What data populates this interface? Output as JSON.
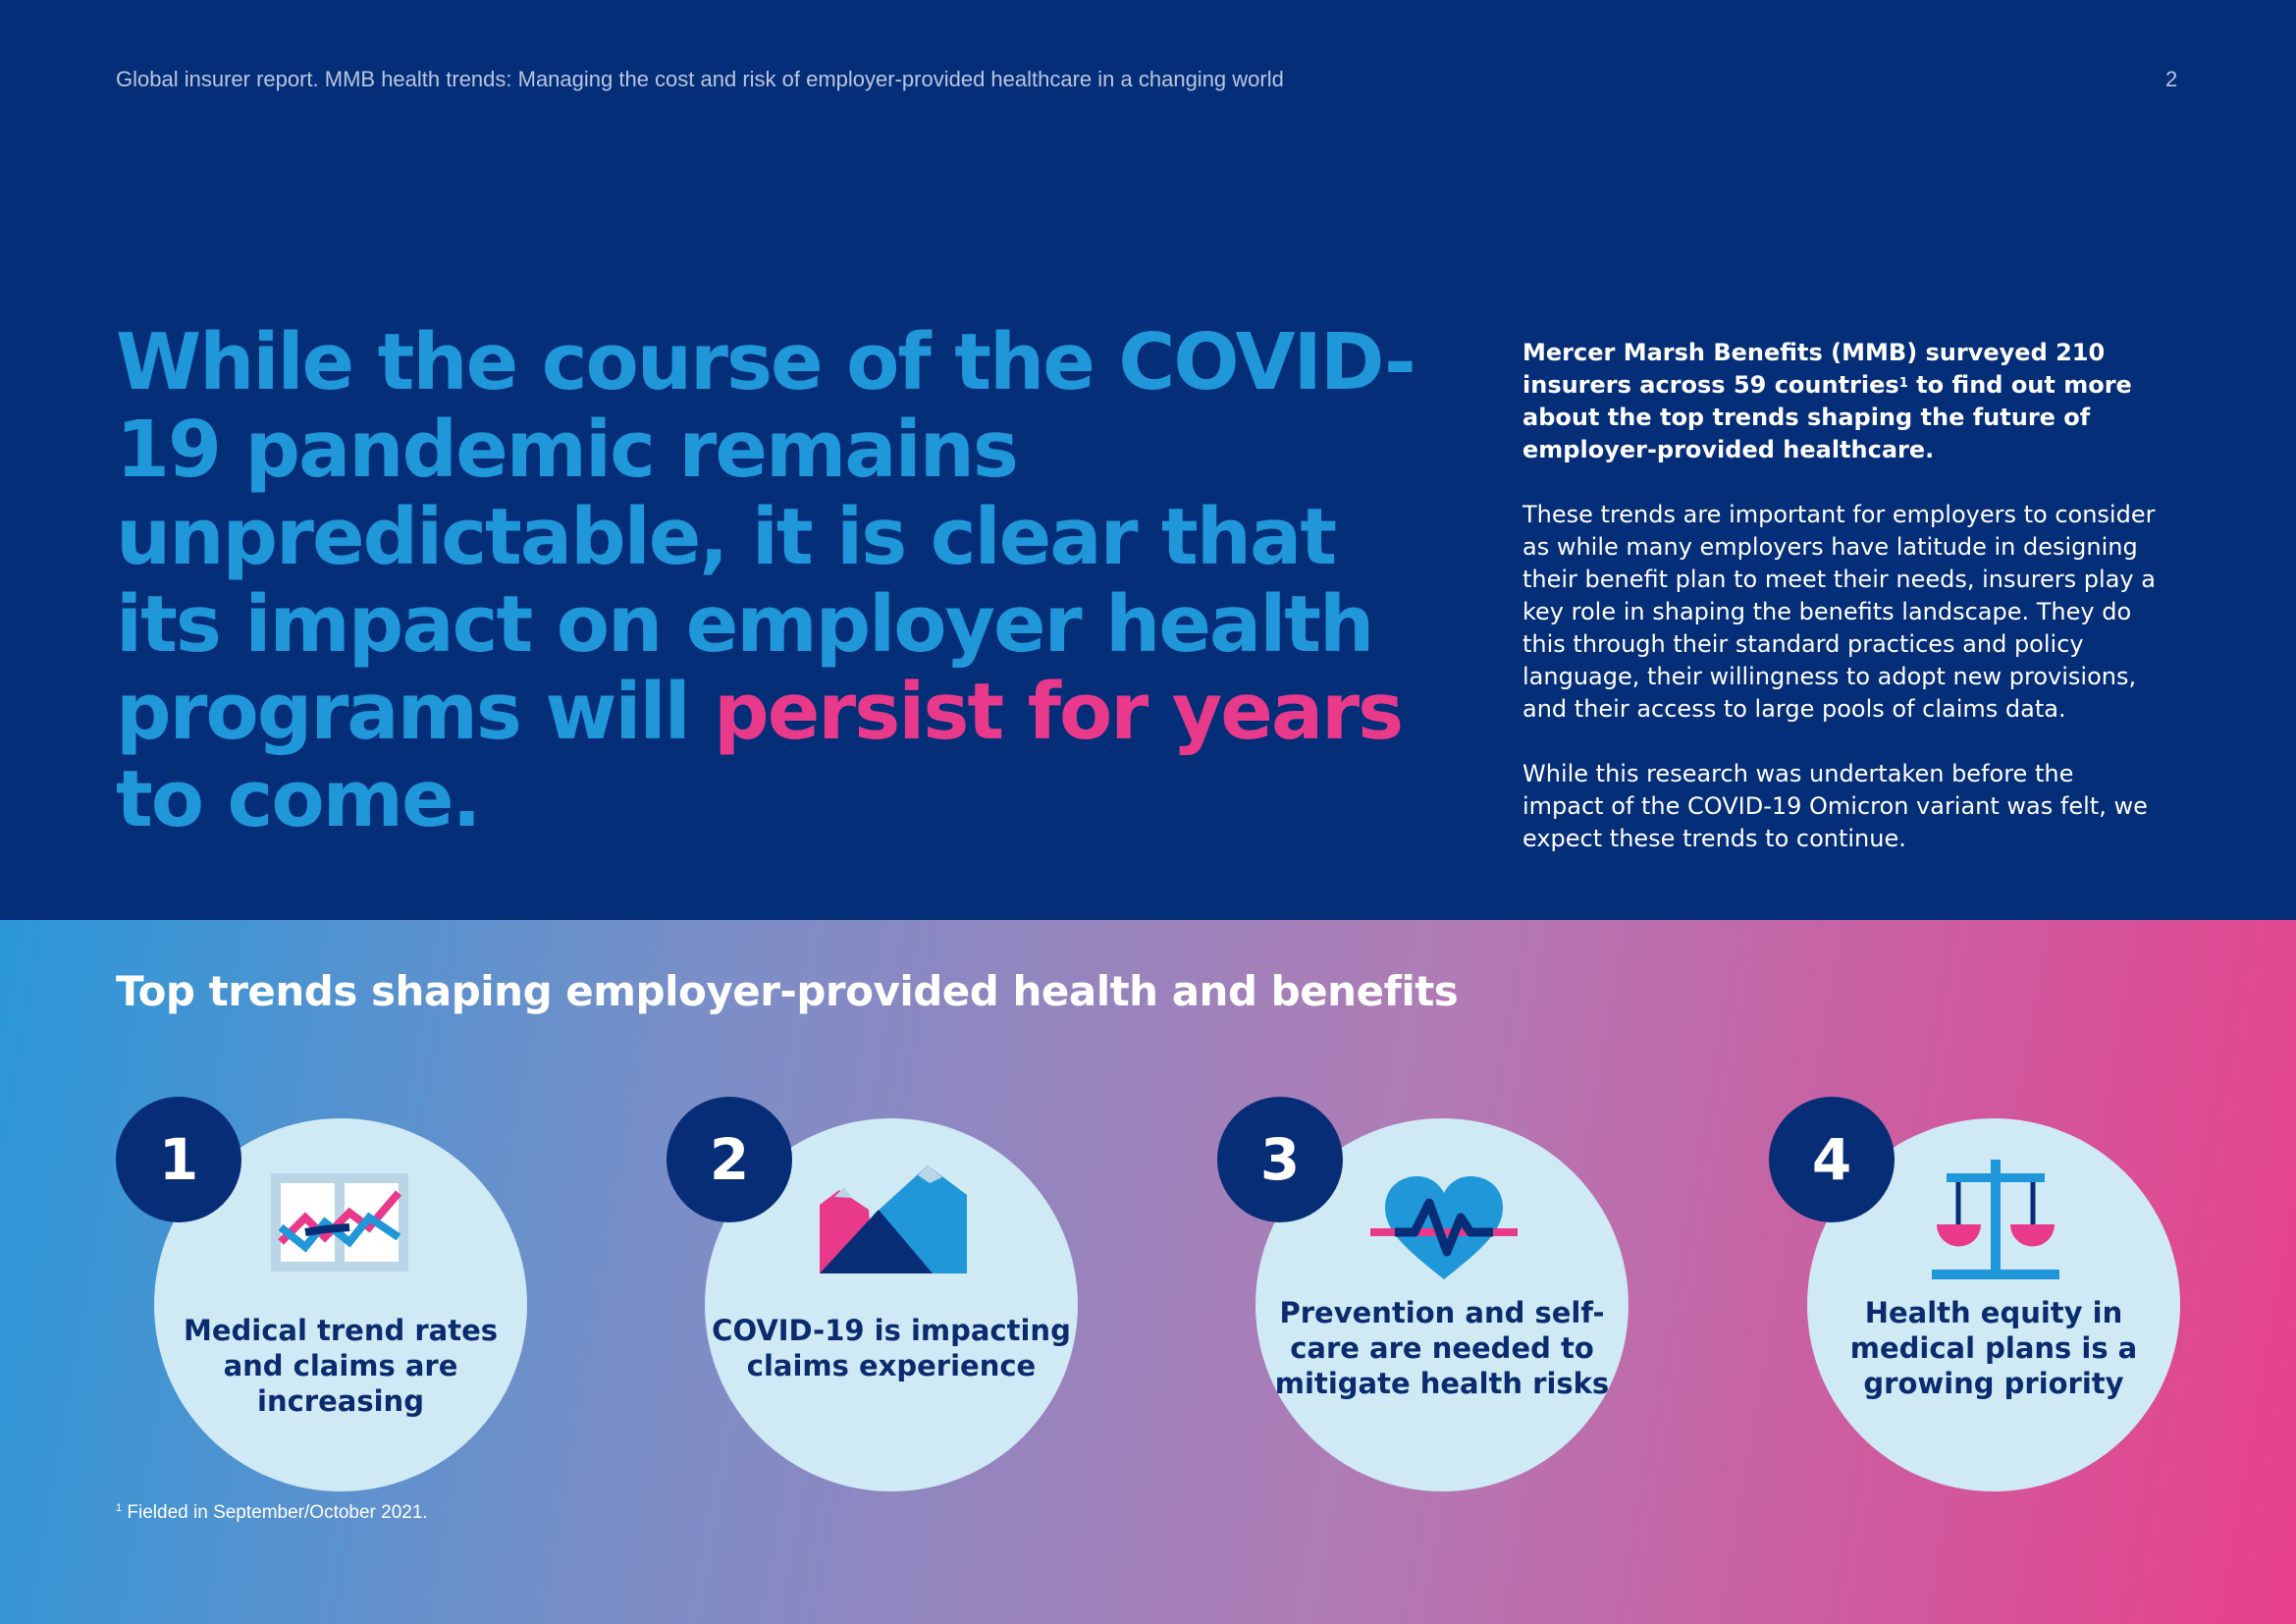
{
  "header": {
    "title": "Global insurer report. MMB health trends: Managing the cost and risk of employer-provided healthcare in a changing world",
    "page_number": "2"
  },
  "headline": {
    "part1": "While the course of the COVID-19 pandemic remains unpredictable, it is clear that its impact on employer health programs will ",
    "highlight": "persist for years",
    "part2": " to come."
  },
  "intro": {
    "lead_a": "Mercer Marsh Benefits (MMB) surveyed 210 insurers across 59 countries",
    "lead_sup": "1",
    "lead_b": " to find out more about the top trends shaping the future of employer-provided healthcare.",
    "para1": "These trends are important for employers to consider as while many employers have latitude in designing their benefit plan to meet their needs, insurers play a key role in shaping the benefits landscape. They do this through their standard practices and policy language, their willingness to adopt new provisions, and their access to large pools of claims data.",
    "para2": "While this research was undertaken before the impact of the COVID-19 Omicron variant was felt, we expect these trends to continue."
  },
  "trends": {
    "title": "Top trends shaping employer-provided health and benefits",
    "items": [
      {
        "number": "1",
        "label": "Medical trend rates and claims are increasing",
        "icon": "trend-chart-icon"
      },
      {
        "number": "2",
        "label": "COVID-19 is impacting claims experience",
        "icon": "mountains-icon"
      },
      {
        "number": "3",
        "label": "Prevention and self-care are needed to mitigate health risks",
        "icon": "heart-pulse-icon"
      },
      {
        "number": "4",
        "label": "Health equity in medical plans is a growing priority",
        "icon": "scales-icon"
      }
    ]
  },
  "footnote": {
    "sup": "1",
    "text": " Fielded in September/October 2021."
  },
  "colors": {
    "navy": "#052e79",
    "blue": "#1f97d9",
    "pink": "#e8398a",
    "light_circle": "#cfe9f5"
  }
}
